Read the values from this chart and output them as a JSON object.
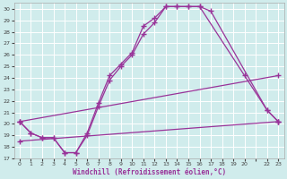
{
  "xlabel": "Windchill (Refroidissement éolien,°C)",
  "bg_color": "#d0ecec",
  "line_color": "#993399",
  "ylim": [
    17,
    30.5
  ],
  "xlim": [
    -0.5,
    23.5
  ],
  "yticks": [
    17,
    18,
    19,
    20,
    21,
    22,
    23,
    24,
    25,
    26,
    27,
    28,
    29,
    30
  ],
  "xticks": [
    0,
    1,
    2,
    3,
    4,
    5,
    6,
    7,
    8,
    9,
    10,
    11,
    12,
    13,
    14,
    15,
    16,
    17,
    18,
    19,
    20,
    21,
    22,
    23
  ],
  "xtick_labels": [
    "0",
    "1",
    "2",
    "3",
    "4",
    "5",
    "6",
    "7",
    "8",
    "9",
    "10",
    "11",
    "12",
    "13",
    "14",
    "15",
    "16",
    "17",
    "18",
    "19",
    "20",
    "",
    "22",
    "23"
  ],
  "curve1_x": [
    0,
    1,
    2,
    3,
    4,
    5,
    6,
    7,
    8,
    9,
    10,
    11,
    12,
    13,
    14,
    15,
    16,
    17,
    22,
    23
  ],
  "curve1_y": [
    20.2,
    19.2,
    18.8,
    18.8,
    17.5,
    17.5,
    19.2,
    21.8,
    24.2,
    25.2,
    26.2,
    28.5,
    29.2,
    30.2,
    30.2,
    30.2,
    30.2,
    29.8,
    21.2,
    20.2
  ],
  "curve2_x": [
    0,
    1,
    2,
    3,
    4,
    5,
    6,
    7,
    8,
    9,
    10,
    11,
    12,
    13,
    14,
    15,
    16,
    20,
    22,
    23
  ],
  "curve2_y": [
    20.2,
    19.2,
    18.8,
    18.8,
    17.5,
    17.5,
    19.0,
    21.5,
    23.8,
    25.0,
    26.0,
    27.8,
    28.8,
    30.2,
    30.2,
    30.2,
    30.2,
    24.2,
    21.2,
    20.2
  ],
  "line1_x": [
    0,
    23
  ],
  "line1_y": [
    20.2,
    24.2
  ],
  "line2_x": [
    0,
    23
  ],
  "line2_y": [
    18.5,
    20.2
  ]
}
